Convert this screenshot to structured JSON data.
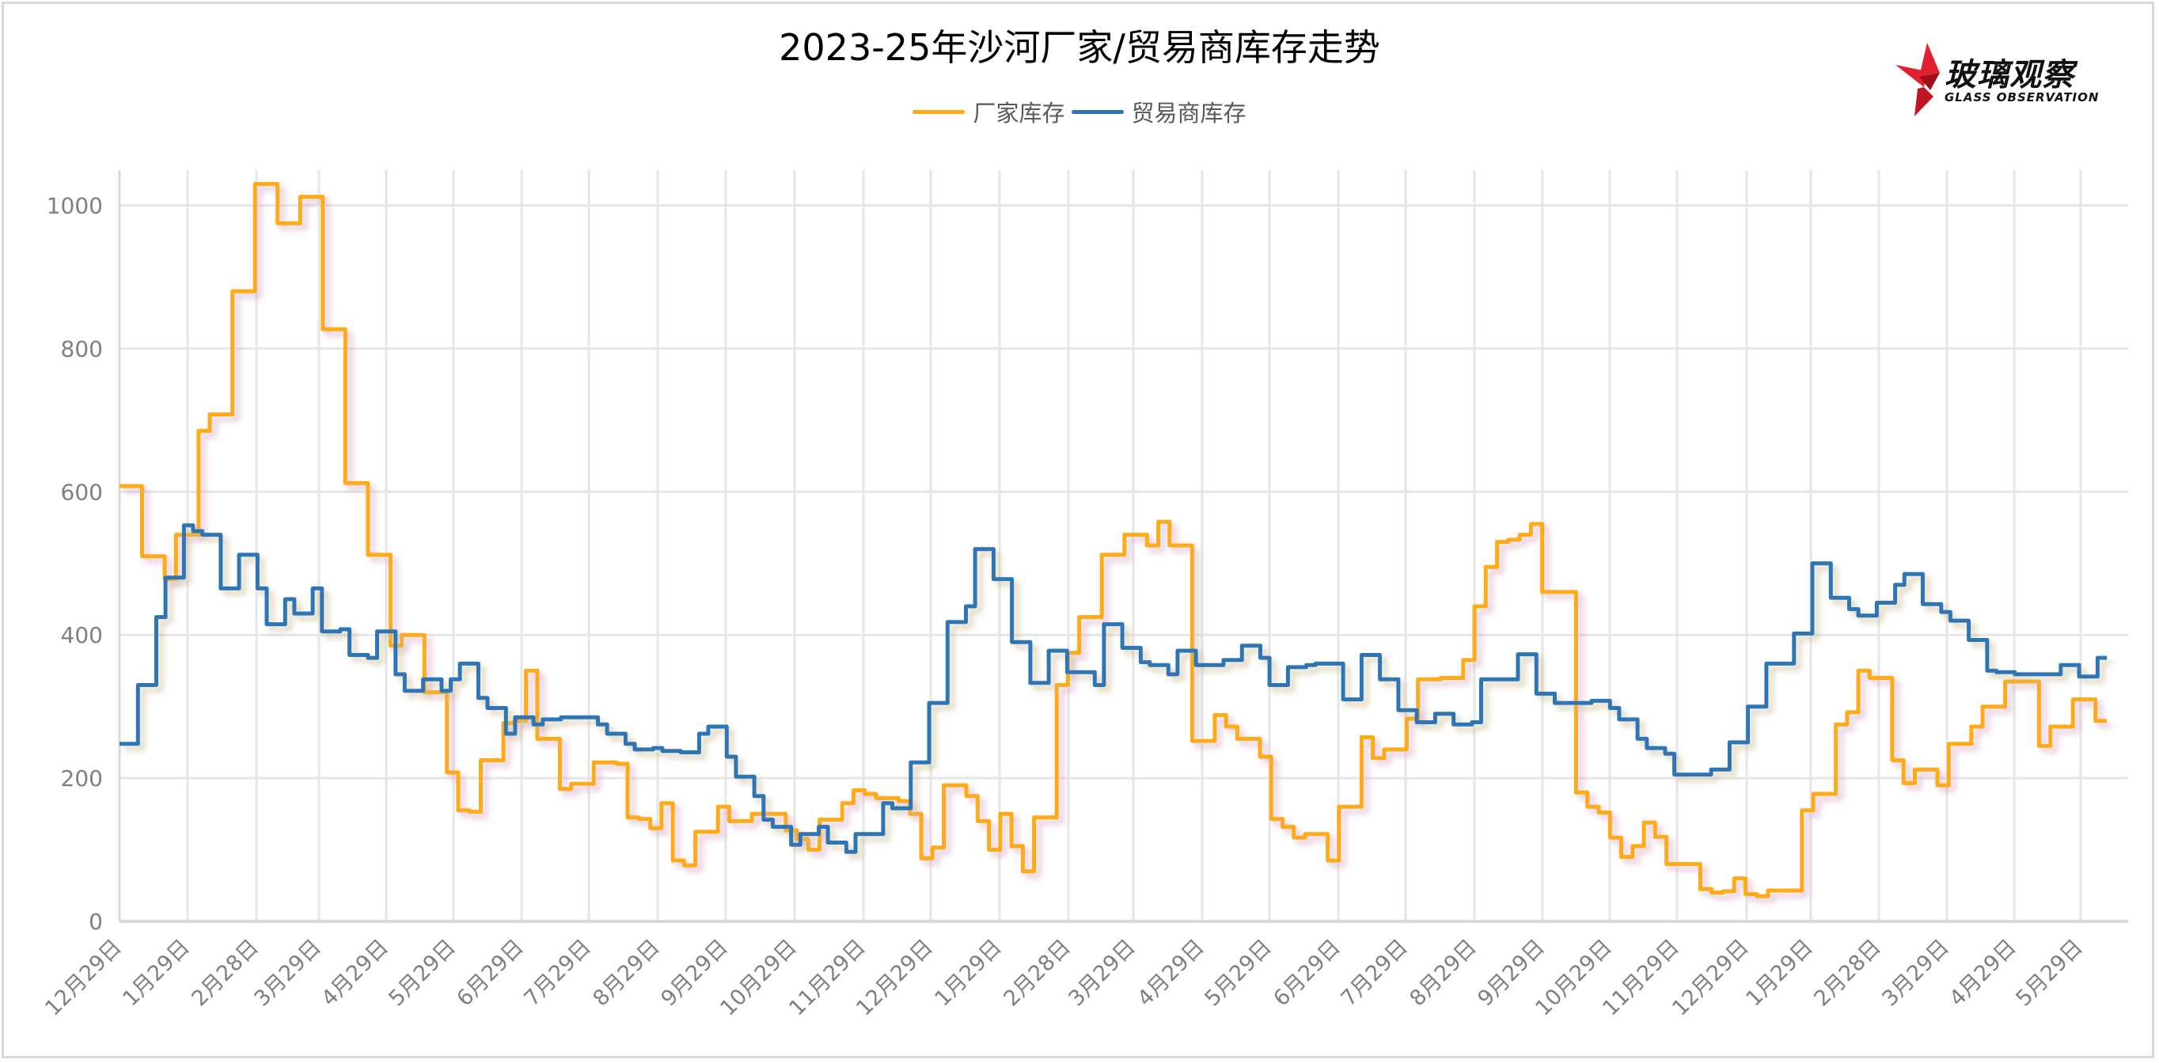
{
  "title": "2023-25年沙河厂家/贸易商库存走势",
  "legend": [
    {
      "label": "厂家库存",
      "color": "#FFAA14"
    },
    {
      "label": "贸易商库存",
      "color": "#2E75B6"
    }
  ],
  "logo": {
    "cn": "玻璃观察",
    "en": "GLASS OBSERVATION",
    "icon": "red-star-icon"
  },
  "chart_data": {
    "type": "line",
    "step": "end",
    "title": "2023-25年沙河厂家/贸易商库存走势",
    "xlabel": "",
    "ylabel": "",
    "ylim": [
      0,
      1050
    ],
    "yticks": [
      0,
      200,
      400,
      600,
      800,
      1000
    ],
    "grid": true,
    "legend_position": "top",
    "x_tick_labels": [
      "12月29日",
      "1月29日",
      "2月28日",
      "3月29日",
      "4月29日",
      "5月29日",
      "6月29日",
      "7月29日",
      "8月29日",
      "9月29日",
      "10月29日",
      "11月29日",
      "12月29日",
      "1月29日",
      "2月28日",
      "3月29日",
      "4月29日",
      "5月29日",
      "6月29日",
      "7月29日",
      "8月29日",
      "9月29日",
      "10月29日",
      "11月29日",
      "12月29日",
      "1月29日",
      "2月28日",
      "3月29日",
      "4月29日",
      "5月29日"
    ],
    "x_unit": "weeks since 12月29日 (start)",
    "series": [
      {
        "name": "厂家库存",
        "color": "#FFAA14",
        "values": [
          608,
          608,
          510,
          510,
          478,
          540,
          540,
          685,
          708,
          708,
          880,
          880,
          1030,
          1030,
          975,
          975,
          1012,
          1012,
          827,
          827,
          612,
          612,
          512,
          512,
          385,
          400,
          400,
          320,
          320,
          208,
          155,
          153,
          225,
          225,
          277,
          280,
          350,
          255,
          255,
          185,
          192,
          192,
          222,
          222,
          220,
          145,
          143,
          130,
          165,
          85,
          78,
          125,
          125,
          160,
          140,
          140,
          150,
          150,
          150,
          127,
          115,
          100,
          142,
          142,
          165,
          183,
          178,
          172,
          172,
          168,
          150,
          88,
          103,
          190,
          190,
          175,
          140,
          100,
          150,
          105,
          70,
          145,
          145,
          330,
          375,
          425,
          425,
          512,
          512,
          540,
          540,
          525,
          558,
          525,
          525,
          252,
          252,
          288,
          272,
          255,
          255,
          230,
          143,
          132,
          117,
          122,
          122,
          85,
          160,
          160,
          257,
          228,
          240,
          240,
          283,
          338,
          338,
          340,
          340,
          365,
          440,
          495,
          530,
          533,
          540,
          555,
          460,
          460,
          460,
          180,
          160,
          152,
          117,
          90,
          105,
          138,
          118,
          80,
          80,
          80,
          45,
          40,
          42,
          60,
          38,
          35,
          43,
          43,
          43,
          155,
          178,
          178,
          275,
          292,
          350,
          340,
          340,
          225,
          193,
          212,
          212,
          190,
          248,
          248,
          272,
          300,
          300,
          335,
          335,
          335,
          245,
          272,
          272,
          310,
          310,
          280
        ],
        "sampled_steps_note": "approximate step levels read off gridlines"
      },
      {
        "name": "贸易商库存",
        "color": "#2E75B6",
        "values": [
          248,
          248,
          330,
          330,
          425,
          480,
          480,
          553,
          545,
          540,
          540,
          465,
          465,
          512,
          512,
          465,
          415,
          415,
          450,
          430,
          430,
          465,
          405,
          405,
          408,
          372,
          372,
          368,
          405,
          405,
          345,
          322,
          322,
          338,
          338,
          322,
          338,
          360,
          360,
          312,
          298,
          298,
          262,
          285,
          285,
          275,
          282,
          282,
          285,
          285,
          285,
          285,
          275,
          262,
          262,
          248,
          240,
          240,
          242,
          238,
          238,
          236,
          236,
          262,
          272,
          272,
          230,
          202,
          202,
          175,
          142,
          132,
          132,
          107,
          122,
          122,
          132,
          110,
          110,
          97,
          122,
          122,
          122,
          165,
          158,
          158,
          222,
          222,
          305,
          305,
          418,
          418,
          440,
          520,
          520,
          478,
          478,
          390,
          390,
          333,
          333,
          378,
          378,
          348,
          348,
          348,
          330,
          415,
          415,
          382,
          382,
          362,
          358,
          358,
          345,
          378,
          378,
          358,
          358,
          358,
          365,
          365,
          385,
          385,
          368,
          330,
          330,
          355,
          355,
          358,
          360,
          360,
          360,
          310,
          310,
          372,
          372,
          338,
          338,
          295,
          295,
          278,
          278,
          290,
          290,
          275,
          275,
          278,
          338,
          338,
          338,
          338,
          373,
          373,
          318,
          318,
          305,
          305,
          305,
          305,
          308,
          308,
          298,
          282,
          282,
          255,
          242,
          242,
          234,
          205,
          205,
          205,
          205,
          212,
          212,
          250,
          250,
          300,
          300,
          360,
          360,
          360,
          402,
          402,
          500,
          500,
          452,
          452,
          436,
          427,
          427,
          445,
          445,
          470,
          485,
          485,
          443,
          443,
          432,
          420,
          420,
          393,
          393,
          350,
          348,
          348,
          345,
          345,
          345,
          345,
          345,
          358,
          358,
          342,
          342,
          368
        ]
      }
    ]
  }
}
